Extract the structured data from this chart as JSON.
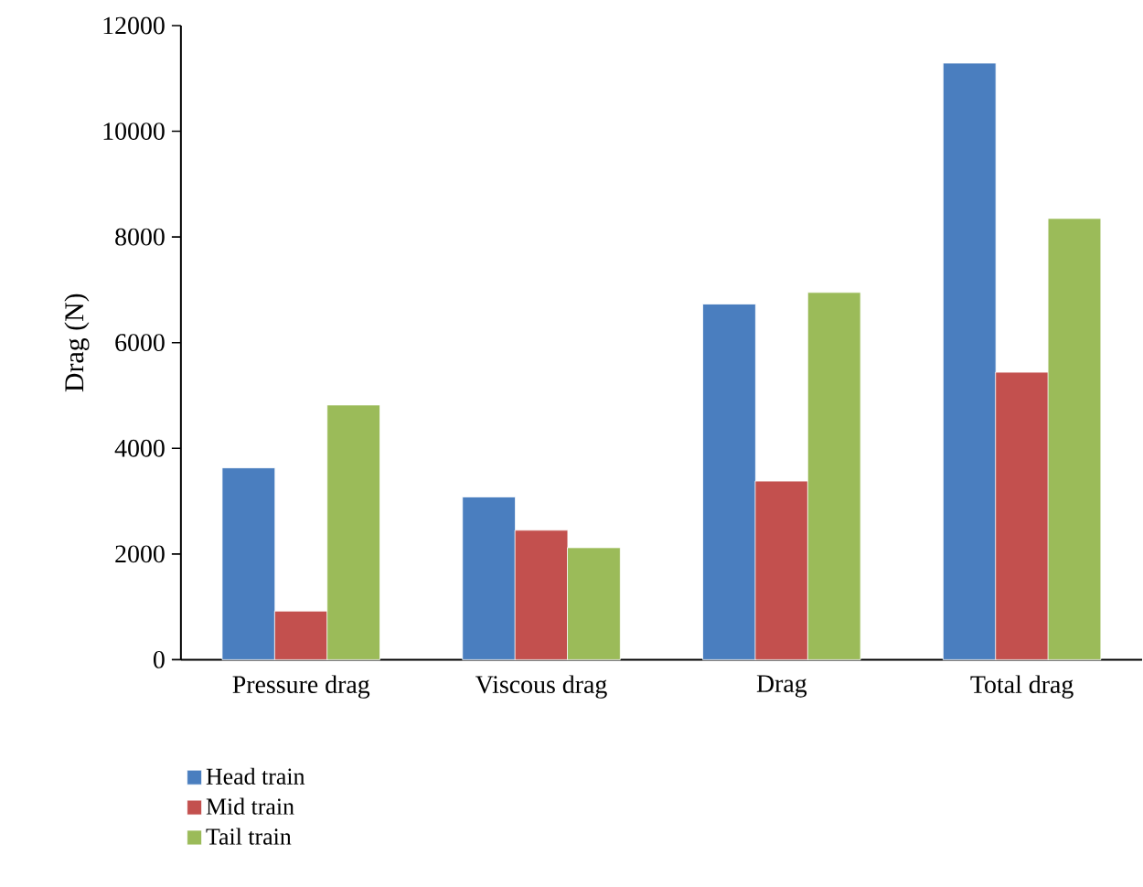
{
  "chart_data": {
    "type": "bar",
    "ylabel": "Drag (N)",
    "categories": [
      "Pressure drag",
      "Viscous drag",
      "Drag",
      "Total drag"
    ],
    "series": [
      {
        "name": "Head train",
        "color": "#4a7ebf",
        "values": [
          3630,
          3080,
          6730,
          11290
        ]
      },
      {
        "name": "Mid train",
        "color": "#c3504e",
        "values": [
          920,
          2450,
          3380,
          5440
        ]
      },
      {
        "name": "Tail train",
        "color": "#9bbb59",
        "values": [
          4820,
          2120,
          6950,
          8350
        ]
      }
    ],
    "ylim": [
      0,
      12000
    ],
    "yticks": [
      0,
      2000,
      4000,
      6000,
      8000,
      10000,
      12000
    ],
    "grid": false,
    "legend": "bottom"
  }
}
